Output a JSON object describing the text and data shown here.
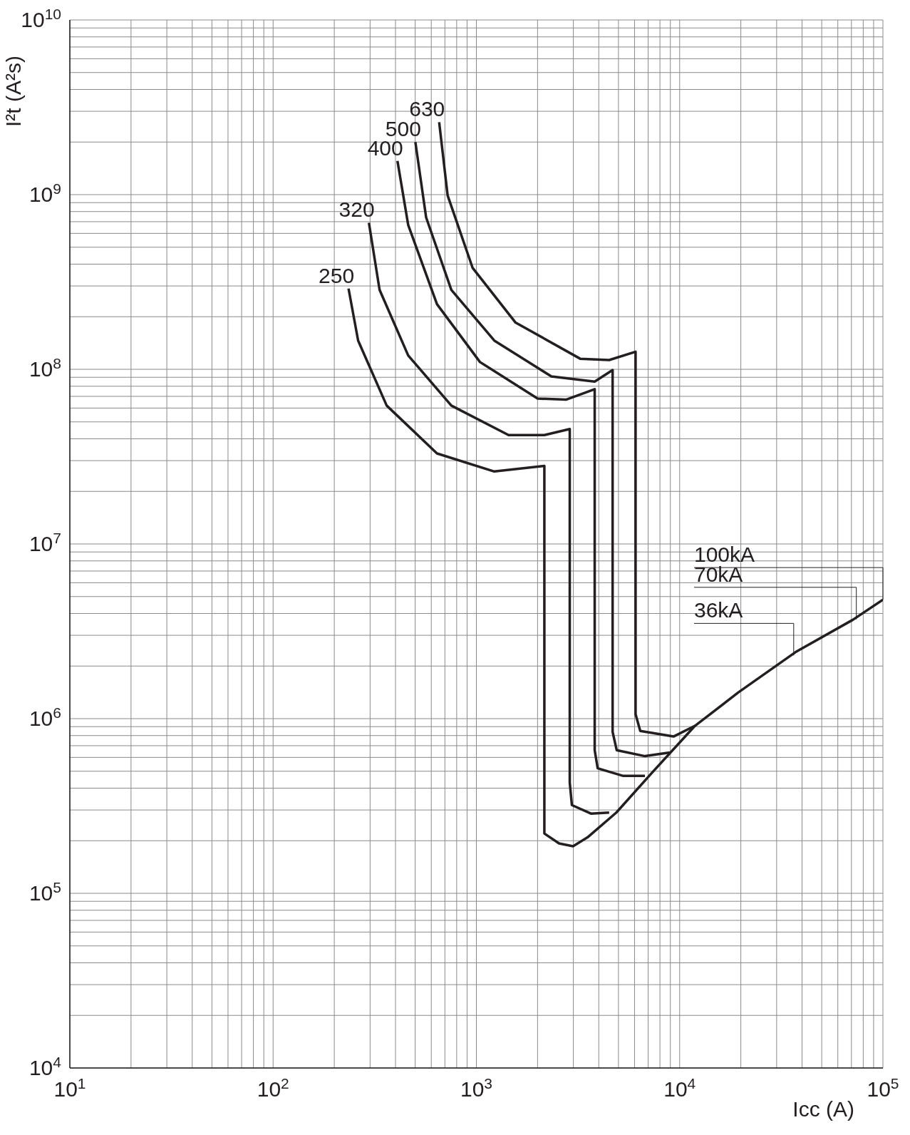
{
  "chart_data": {
    "type": "line",
    "xlabel": "Icc (A)",
    "ylabel": "I²t (A²s)",
    "log": "xy",
    "grid": true,
    "marker": "none",
    "line_style": "solid",
    "xlim": [
      10,
      100000
    ],
    "ylim": [
      10000,
      10000000000
    ],
    "xticks": [
      {
        "value": 10,
        "label": "10$^{1}$"
      },
      {
        "value": 20,
        "label": null
      },
      {
        "value": 30,
        "label": null
      },
      {
        "value": 40,
        "label": null
      },
      {
        "value": 50,
        "label": null
      },
      {
        "value": 60,
        "label": null
      },
      {
        "value": 70,
        "label": null
      },
      {
        "value": 80,
        "label": null
      },
      {
        "value": 90,
        "label": null
      },
      {
        "value": 100,
        "label": "10$^{2}$"
      },
      {
        "value": 200,
        "label": null
      },
      {
        "value": 300,
        "label": null
      },
      {
        "value": 400,
        "label": null
      },
      {
        "value": 500,
        "label": null
      },
      {
        "value": 600,
        "label": null
      },
      {
        "value": 700,
        "label": null
      },
      {
        "value": 800,
        "label": null
      },
      {
        "value": 900,
        "label": null
      },
      {
        "value": 1000,
        "label": "10$^{3}$"
      },
      {
        "value": 2000,
        "label": null
      },
      {
        "value": 3000,
        "label": null
      },
      {
        "value": 4000,
        "label": null
      },
      {
        "value": 5000,
        "label": null
      },
      {
        "value": 6000,
        "label": null
      },
      {
        "value": 7000,
        "label": null
      },
      {
        "value": 8000,
        "label": null
      },
      {
        "value": 9000,
        "label": null
      },
      {
        "value": 10000,
        "label": "10$^{4}$"
      },
      {
        "value": 20000,
        "label": null
      },
      {
        "value": 30000,
        "label": null
      },
      {
        "value": 40000,
        "label": null
      },
      {
        "value": 50000,
        "label": null
      },
      {
        "value": 60000,
        "label": null
      },
      {
        "value": 70000,
        "label": null
      },
      {
        "value": 80000,
        "label": null
      },
      {
        "value": 90000,
        "label": null
      },
      {
        "value": 100000,
        "label": "10$^{5}$"
      }
    ],
    "yticks": [
      {
        "value": 10000,
        "label": "10$^{4}$"
      },
      {
        "value": 20000,
        "label": null
      },
      {
        "value": 30000,
        "label": null
      },
      {
        "value": 40000,
        "label": null
      },
      {
        "value": 50000,
        "label": null
      },
      {
        "value": 60000,
        "label": null
      },
      {
        "value": 70000,
        "label": null
      },
      {
        "value": 80000,
        "label": null
      },
      {
        "value": 90000,
        "label": null
      },
      {
        "value": 100000,
        "label": "10$^{5}$"
      },
      {
        "value": 200000,
        "label": null
      },
      {
        "value": 300000,
        "label": null
      },
      {
        "value": 400000,
        "label": null
      },
      {
        "value": 500000,
        "label": null
      },
      {
        "value": 600000,
        "label": null
      },
      {
        "value": 700000,
        "label": null
      },
      {
        "value": 800000,
        "label": null
      },
      {
        "value": 900000,
        "label": null
      },
      {
        "value": 1000000,
        "label": "10$^{6}$"
      },
      {
        "value": 2000000,
        "label": null
      },
      {
        "value": 3000000,
        "label": null
      },
      {
        "value": 4000000,
        "label": null
      },
      {
        "value": 5000000,
        "label": null
      },
      {
        "value": 6000000,
        "label": null
      },
      {
        "value": 7000000,
        "label": null
      },
      {
        "value": 8000000,
        "label": null
      },
      {
        "value": 9000000,
        "label": null
      },
      {
        "value": 10000000,
        "label": "10$^{7}$"
      },
      {
        "value": 20000000,
        "label": null
      },
      {
        "value": 30000000,
        "label": null
      },
      {
        "value": 40000000,
        "label": null
      },
      {
        "value": 50000000,
        "label": null
      },
      {
        "value": 60000000,
        "label": null
      },
      {
        "value": 70000000,
        "label": null
      },
      {
        "value": 80000000,
        "label": null
      },
      {
        "value": 90000000,
        "label": null
      },
      {
        "value": 100000000,
        "label": "10$^{8}$"
      },
      {
        "value": 200000000,
        "label": null
      },
      {
        "value": 300000000,
        "label": null
      },
      {
        "value": 400000000,
        "label": null
      },
      {
        "value": 500000000,
        "label": null
      },
      {
        "value": 600000000,
        "label": null
      },
      {
        "value": 700000000,
        "label": null
      },
      {
        "value": 800000000,
        "label": null
      },
      {
        "value": 900000000,
        "label": null
      },
      {
        "value": 1000000000,
        "label": "10$^{9}$"
      },
      {
        "value": 2000000000,
        "label": null
      },
      {
        "value": 3000000000,
        "label": null
      },
      {
        "value": 4000000000,
        "label": null
      },
      {
        "value": 5000000000,
        "label": null
      },
      {
        "value": 6000000000,
        "label": null
      },
      {
        "value": 7000000000,
        "label": null
      },
      {
        "value": 8000000000,
        "label": null
      },
      {
        "value": 9000000000,
        "label": null
      },
      {
        "value": 10000000000,
        "label": "10$^{10}$"
      }
    ],
    "series": [
      {
        "name": "250",
        "color": "#231f20",
        "x": [
          235,
          262,
          362,
          640,
          1225,
          2160,
          2160,
          2160,
          2550,
          2990,
          3520,
          4880,
          7310,
          11900,
          19400,
          37100,
          71100,
          100000
        ],
        "values": [
          290000000,
          146000000,
          62000000,
          33000000,
          26000000,
          28000000,
          290000,
          220000,
          193000,
          186000,
          209000,
          290000,
          490000,
          910000,
          1410000,
          2400000,
          3680000,
          4800000
        ]
      },
      {
        "name": "320",
        "color": "#231f20",
        "x": [
          296,
          334,
          462,
          753,
          1440,
          2160,
          2880,
          2880,
          2950,
          3660,
          4500
        ],
        "values": [
          690000000,
          285000000,
          120000000,
          62000000,
          42000000,
          42000000,
          45500000,
          430000,
          320000,
          286000,
          290000
        ]
      },
      {
        "name": "400",
        "color": "#231f20",
        "x": [
          409,
          462,
          640,
          1042,
          2000,
          2760,
          3820,
          3820,
          3950,
          5280,
          6750
        ],
        "values": [
          1560000000,
          670000000,
          236000000,
          110000000,
          68000000,
          67000000,
          77000000,
          660000,
          520000,
          470000,
          470000
        ]
      },
      {
        "name": "500",
        "color": "#231f20",
        "x": [
          501,
          566,
          753,
          1225,
          2340,
          3820,
          4680,
          4680,
          4900,
          6750,
          8950
        ],
        "values": [
          2000000000,
          740000000,
          285000000,
          146000000,
          91000000,
          85000000,
          99000000,
          840000,
          660000,
          610000,
          640000
        ]
      },
      {
        "name": "630",
        "color": "#231f20",
        "x": [
          656,
          722,
          959,
          1560,
          3240,
          4500,
          6070,
          6070,
          6400,
          9330,
          11900
        ],
        "values": [
          2600000000,
          990000000,
          380000000,
          185000000,
          115000000,
          113000000,
          126000000,
          1060000,
          850000,
          790000,
          910000
        ]
      }
    ],
    "annotations": [
      {
        "text": "100kA",
        "x": 100000,
        "y": 4800000
      },
      {
        "text": "70kA",
        "x": 74000,
        "y": 3700000
      },
      {
        "text": "36kA",
        "x": 36400,
        "y": 2300000
      }
    ]
  }
}
